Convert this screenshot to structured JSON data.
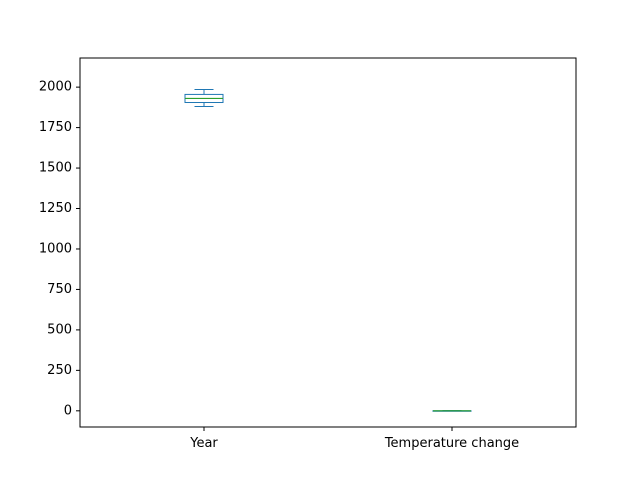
{
  "chart_data": {
    "type": "box",
    "title": "",
    "xlabel": "",
    "ylabel": "",
    "ylim": [
      -100,
      2180
    ],
    "yticks": [
      0,
      250,
      500,
      750,
      1000,
      1250,
      1500,
      1750,
      2000
    ],
    "grid": false,
    "legend": "none",
    "categories": [
      "Year",
      "Temperature change"
    ],
    "boxes": [
      {
        "name": "Year",
        "whisker_low": 1880,
        "q1": 1905,
        "median": 1930,
        "q3": 1955,
        "whisker_high": 1985
      },
      {
        "name": "Temperature change",
        "whisker_low": -0.6,
        "q1": -0.2,
        "median": 0.0,
        "q3": 0.3,
        "whisker_high": 1.0
      }
    ],
    "colors": {
      "box": "#1f77b4",
      "median": "#2ca02c",
      "axis": "#000000"
    }
  }
}
